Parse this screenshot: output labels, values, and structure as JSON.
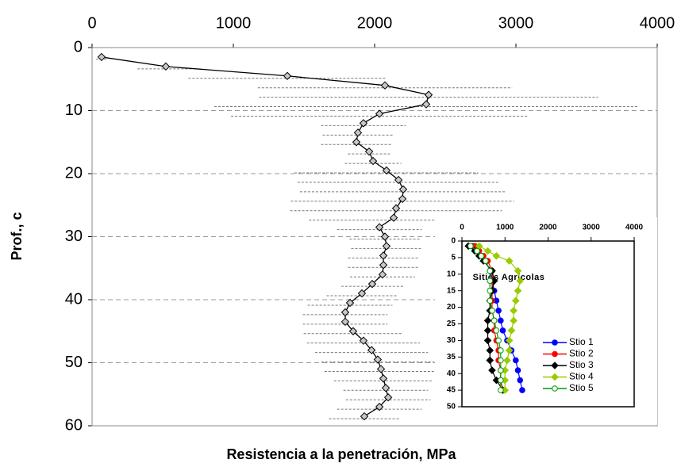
{
  "chart_data": [
    {
      "type": "line",
      "xlabel": "Resistencia a la penetración, MPa",
      "ylabel": "Prof., c",
      "y": [
        1.5,
        3,
        4.5,
        6,
        7.5,
        9,
        10.5,
        12,
        13.5,
        15,
        16.5,
        18,
        19.5,
        21,
        22.5,
        24,
        25.5,
        27,
        28.5,
        30,
        31.5,
        33,
        34.5,
        36,
        37.5,
        39,
        40.5,
        42,
        43.5,
        45,
        46.5,
        48,
        49.5,
        51,
        52.5,
        54,
        55.5,
        57,
        58.5
      ],
      "values": [
        67,
        522,
        1382,
        2073,
        2382,
        2365,
        2034,
        1921,
        1882,
        1871,
        1961,
        1989,
        2084,
        2169,
        2202,
        2197,
        2152,
        2135,
        2034,
        2073,
        2084,
        2062,
        2062,
        2056,
        1983,
        1910,
        1826,
        1792,
        1792,
        1848,
        1921,
        1978,
        2022,
        2045,
        2062,
        2079,
        2096,
        2034,
        1927
      ],
      "errors": [
        40,
        200,
        700,
        900,
        1200,
        1500,
        1050,
        300,
        250,
        250,
        150,
        200,
        650,
        715,
        730,
        790,
        750,
        600,
        300,
        250,
        250,
        250,
        250,
        230,
        220,
        250,
        300,
        300,
        300,
        350,
        400,
        400,
        400,
        400,
        350,
        300,
        300,
        300,
        250
      ],
      "color": "#000000",
      "xlim": [
        0,
        4000
      ],
      "xticks": [
        0,
        1000,
        2000,
        3000,
        4000
      ],
      "ylim": [
        0,
        60
      ],
      "yticks": [
        0,
        10,
        20,
        30,
        40,
        50,
        60
      ],
      "y_inverted": true,
      "grid": true
    },
    {
      "type": "line",
      "title": "Sitios Agrícolas",
      "y": [
        1.5,
        3,
        4.5,
        6,
        9,
        12,
        15,
        18,
        21,
        24,
        27,
        30,
        33,
        36,
        39,
        42,
        45
      ],
      "series": [
        {
          "name": "Stio 1",
          "color": "#0000ff",
          "marker": "circle",
          "values": [
            250,
            350,
            450,
            550,
            650,
            700,
            750,
            800,
            850,
            900,
            950,
            1050,
            1150,
            1250,
            1300,
            1350,
            1400
          ]
        },
        {
          "name": "Stio 2",
          "color": "#ff0000",
          "marker": "circle",
          "values": [
            300,
            400,
            500,
            600,
            700,
            700,
            700,
            700,
            700,
            750,
            750,
            800,
            850,
            850,
            900,
            900,
            950
          ]
        },
        {
          "name": "Stio 3",
          "color": "#000000",
          "marker": "diamond",
          "values": [
            150,
            300,
            400,
            500,
            700,
            750,
            700,
            650,
            650,
            600,
            600,
            600,
            650,
            650,
            700,
            800,
            950
          ]
        },
        {
          "name": "Stio 4",
          "color": "#99cc00",
          "marker": "diamond",
          "values": [
            400,
            600,
            800,
            1100,
            1300,
            1350,
            1300,
            1250,
            1200,
            1200,
            1150,
            1100,
            1100,
            1050,
            1000,
            1000,
            1000
          ]
        },
        {
          "name": "Stio 5",
          "color": "#009900",
          "marker": "open-circle",
          "values": [
            200,
            350,
            450,
            550,
            650,
            650,
            650,
            650,
            700,
            750,
            800,
            850,
            900,
            900,
            900,
            900,
            900
          ]
        }
      ],
      "xlim": [
        0,
        4000
      ],
      "xticks": [
        0,
        1000,
        2000,
        3000,
        4000
      ],
      "ylim": [
        0,
        50
      ],
      "yticks": [
        0,
        5,
        10,
        15,
        20,
        25,
        30,
        35,
        40,
        45,
        50
      ],
      "y_inverted": true
    }
  ]
}
